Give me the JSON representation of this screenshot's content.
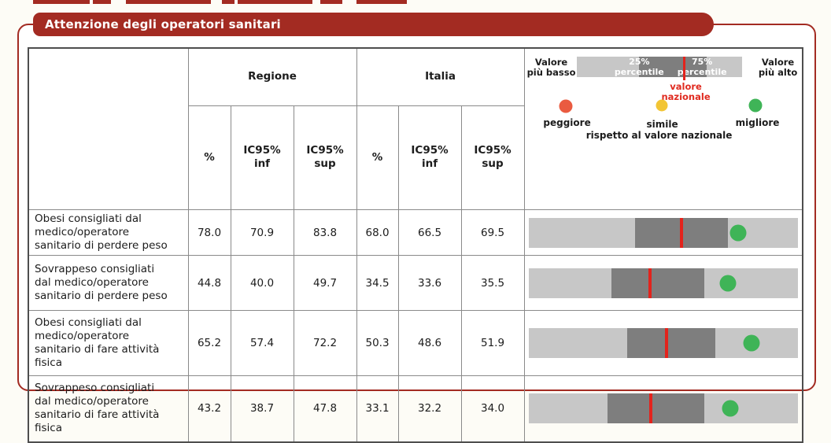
{
  "title": "Attenzione degli operatori sanitari",
  "colors": {
    "accent_red": "#a32b22",
    "bar_light": "#c7c7c7",
    "bar_dark": "#7e7e7e",
    "national_line_red": "#e3231c",
    "legend_text_red": "#e02b20"
  },
  "legend": {
    "lowest": "Valore\npiù basso",
    "highest": "Valore\npiù alto",
    "p25": "25%\npercentile",
    "p75": "75%\npercentile",
    "national": "valore\nnazionale",
    "worse": "peggiore",
    "similar": "simile",
    "better": "migliore",
    "caption": "rispetto al valore nazionale",
    "dot_colors": {
      "red": "#ea5b40",
      "yellow": "#f2c535",
      "green": "#3fb457"
    },
    "bar": {
      "q1_pct": 37.6,
      "q3_pct": 79.0,
      "national_pct": 64.3
    }
  },
  "table": {
    "groups": {
      "regione": "Regione",
      "italia": "Italia"
    },
    "sub_headers": [
      "%",
      "IC95%\ninf",
      "IC95%\nsup",
      "%",
      "IC95%\ninf",
      "IC95%\nsup"
    ]
  },
  "chart_data": {
    "type": "table",
    "title": "Attenzione degli operatori sanitari",
    "columns": [
      "Regione %",
      "Regione IC95% inf",
      "Regione IC95% sup",
      "Italia %",
      "Italia IC95% inf",
      "Italia IC95% sup"
    ],
    "rows": [
      {
        "label": "Obesi consigliati dal\nmedico/operatore\nsanitario di perdere peso",
        "regione": {
          "pct": "78.0",
          "inf": "70.9",
          "sup": "83.8"
        },
        "italia": {
          "pct": "68.0",
          "inf": "66.5",
          "sup": "69.5"
        },
        "bar": {
          "q1_pct": 39.5,
          "q3_pct": 74.0,
          "national_pct": 56.1,
          "dot_pct": 77.8,
          "dot_color": "green"
        }
      },
      {
        "label": "Sovrappeso consigliati\ndal medico/operatore\nsanitario di perdere peso",
        "regione": {
          "pct": "44.8",
          "inf": "40.0",
          "sup": "49.7"
        },
        "italia": {
          "pct": "34.5",
          "inf": "33.6",
          "sup": "35.5"
        },
        "bar": {
          "q1_pct": 30.7,
          "q3_pct": 65.2,
          "national_pct": 44.4,
          "dot_pct": 74.0,
          "dot_color": "green"
        }
      },
      {
        "label": "Obesi consigliati dal\nmedico/operatore\nsanitario di fare attività\nfisica",
        "regione": {
          "pct": "65.2",
          "inf": "57.4",
          "sup": "72.2"
        },
        "italia": {
          "pct": "50.3",
          "inf": "48.6",
          "sup": "51.9"
        },
        "bar": {
          "q1_pct": 36.5,
          "q3_pct": 69.3,
          "national_pct": 50.6,
          "dot_pct": 82.7,
          "dot_color": "green"
        }
      },
      {
        "label": "Sovrappeso consigliati\ndal medico/operatore\nsanitario di fare attività\nfisica",
        "regione": {
          "pct": "43.2",
          "inf": "38.7",
          "sup": "47.8"
        },
        "italia": {
          "pct": "33.1",
          "inf": "32.2",
          "sup": "34.0"
        },
        "bar": {
          "q1_pct": 29.2,
          "q3_pct": 65.2,
          "national_pct": 44.7,
          "dot_pct": 74.9,
          "dot_color": "green"
        }
      }
    ]
  }
}
